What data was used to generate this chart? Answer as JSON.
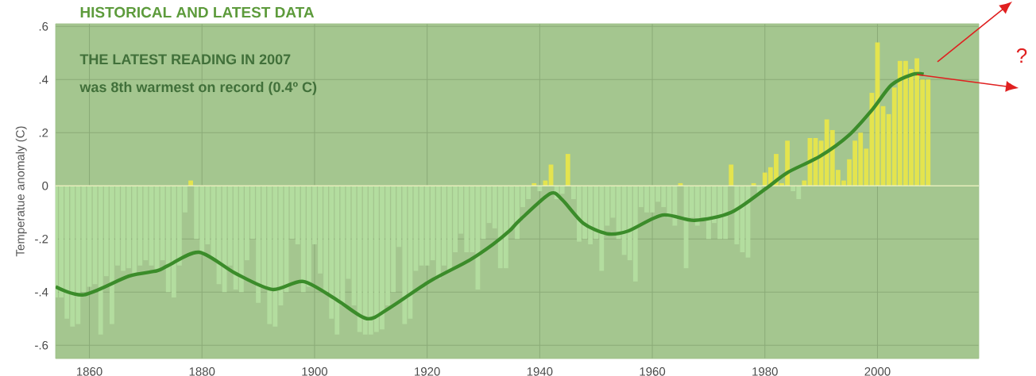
{
  "chart_data": {
    "type": "bar",
    "title": "HISTORICAL AND LATEST DATA",
    "ylabel": "Temperatue anomaly (C)",
    "annotations": [
      "THE LATEST READING IN 2007",
      "was 8th warmest on record (0.4º C)",
      "?"
    ],
    "xlim": [
      1854,
      2018
    ],
    "ylim": [
      -0.65,
      0.61
    ],
    "xticks": [
      1860,
      1880,
      1900,
      1920,
      1940,
      1960,
      1980,
      2000
    ],
    "yticks": [
      {
        "value": -0.6,
        "label": "-.6"
      },
      {
        "value": -0.4,
        "label": "-.4"
      },
      {
        "value": -0.2,
        "label": "-.2"
      },
      {
        "value": 0,
        "label": "0"
      },
      {
        "value": 0.2,
        "label": ".2"
      },
      {
        "value": 0.4,
        "label": ".4"
      },
      {
        "value": 0.6,
        "label": ".6"
      }
    ],
    "grid": true,
    "ref_lines": [
      {
        "axis": "y",
        "value": 0,
        "color": "#e8efbe"
      }
    ],
    "x": [
      1854,
      1855,
      1856,
      1857,
      1858,
      1859,
      1860,
      1861,
      1862,
      1863,
      1864,
      1865,
      1866,
      1867,
      1868,
      1869,
      1870,
      1871,
      1872,
      1873,
      1874,
      1875,
      1876,
      1877,
      1878,
      1879,
      1880,
      1881,
      1882,
      1883,
      1884,
      1885,
      1886,
      1887,
      1888,
      1889,
      1890,
      1891,
      1892,
      1893,
      1894,
      1895,
      1896,
      1897,
      1898,
      1899,
      1900,
      1901,
      1902,
      1903,
      1904,
      1905,
      1906,
      1907,
      1908,
      1909,
      1910,
      1911,
      1912,
      1913,
      1914,
      1915,
      1916,
      1917,
      1918,
      1919,
      1920,
      1921,
      1922,
      1923,
      1924,
      1925,
      1926,
      1927,
      1928,
      1929,
      1930,
      1931,
      1932,
      1933,
      1934,
      1935,
      1936,
      1937,
      1938,
      1939,
      1940,
      1941,
      1942,
      1943,
      1944,
      1945,
      1946,
      1947,
      1948,
      1949,
      1950,
      1951,
      1952,
      1953,
      1954,
      1955,
      1956,
      1957,
      1958,
      1959,
      1960,
      1961,
      1962,
      1963,
      1964,
      1965,
      1966,
      1967,
      1968,
      1969,
      1970,
      1971,
      1972,
      1973,
      1974,
      1975,
      1976,
      1977,
      1978,
      1979,
      1980,
      1981,
      1982,
      1983,
      1984,
      1985,
      1986,
      1987,
      1988,
      1989,
      1990,
      1991,
      1992,
      1993,
      1994,
      1995,
      1996,
      1997,
      1998,
      1999,
      2000,
      2001,
      2002,
      2003,
      2004,
      2005,
      2006,
      2007,
      2008,
      2009
    ],
    "series": [
      {
        "values": [
          -0.42,
          -0.42,
          -0.5,
          -0.53,
          -0.52,
          -0.4,
          -0.38,
          -0.37,
          -0.56,
          -0.34,
          -0.52,
          -0.3,
          -0.32,
          -0.31,
          -0.33,
          -0.3,
          -0.28,
          -0.3,
          -0.32,
          -0.28,
          -0.4,
          -0.42,
          -0.3,
          -0.1,
          0.02,
          -0.2,
          -0.25,
          -0.22,
          -0.28,
          -0.37,
          -0.4,
          -0.3,
          -0.39,
          -0.4,
          -0.28,
          -0.2,
          -0.44,
          -0.38,
          -0.52,
          -0.53,
          -0.45,
          -0.4,
          -0.2,
          -0.22,
          -0.4,
          -0.38,
          -0.22,
          -0.33,
          -0.4,
          -0.5,
          -0.56,
          -0.45,
          -0.35,
          -0.45,
          -0.55,
          -0.56,
          -0.56,
          -0.55,
          -0.54,
          -0.45,
          -0.4,
          -0.23,
          -0.52,
          -0.5,
          -0.32,
          -0.3,
          -0.3,
          -0.28,
          -0.35,
          -0.3,
          -0.32,
          -0.25,
          -0.18,
          -0.25,
          -0.25,
          -0.39,
          -0.2,
          -0.14,
          -0.16,
          -0.31,
          -0.31,
          -0.16,
          -0.2,
          -0.08,
          -0.05,
          0.01,
          -0.02,
          0.02,
          0.08,
          -0.05,
          -0.03,
          0.12,
          -0.05,
          -0.21,
          -0.2,
          -0.22,
          -0.2,
          -0.32,
          -0.15,
          -0.12,
          -0.2,
          -0.26,
          -0.28,
          -0.36,
          -0.08,
          -0.1,
          -0.1,
          -0.06,
          -0.08,
          -0.12,
          -0.15,
          0.01,
          -0.31,
          -0.12,
          -0.15,
          -0.12,
          -0.2,
          -0.14,
          -0.2,
          -0.2,
          0.08,
          -0.22,
          -0.25,
          -0.27,
          0.01,
          -0.03,
          0.05,
          0.07,
          0.12,
          0.01,
          0.17,
          -0.02,
          -0.05,
          0.02,
          0.18,
          0.18,
          0.17,
          0.25,
          0.21,
          0.06,
          0.02,
          0.1,
          0.17,
          0.2,
          0.14,
          0.35,
          0.54,
          0.3,
          0.27,
          0.37,
          0.47,
          0.47,
          0.44,
          0.48,
          0.4,
          0.4
        ],
        "colors": [
          "#b3dd9f",
          "#b3dd9f",
          "#b3dd9f",
          "#b3dd9f",
          "#b3dd9f",
          "#b3dd9f",
          "#b3dd9f",
          "#b3dd9f",
          "#b3dd9f",
          "#b3dd9f",
          "#b3dd9f",
          "#b3dd9f",
          "#b3dd9f",
          "#b3dd9f",
          "#b3dd9f",
          "#b3dd9f",
          "#b3dd9f",
          "#b3dd9f",
          "#b3dd9f",
          "#b3dd9f",
          "#b3dd9f",
          "#b3dd9f",
          "#b3dd9f",
          "#b3dd9f",
          "#e4e44e",
          "#b3dd9f",
          "#b3dd9f",
          "#b3dd9f",
          "#b3dd9f",
          "#b3dd9f",
          "#b3dd9f",
          "#b3dd9f",
          "#b3dd9f",
          "#b3dd9f",
          "#b3dd9f",
          "#b3dd9f",
          "#b3dd9f",
          "#b3dd9f",
          "#b3dd9f",
          "#b3dd9f",
          "#b3dd9f",
          "#b3dd9f",
          "#b3dd9f",
          "#b3dd9f",
          "#b3dd9f",
          "#b3dd9f",
          "#b3dd9f",
          "#b3dd9f",
          "#b3dd9f",
          "#b3dd9f",
          "#b3dd9f",
          "#b3dd9f",
          "#b3dd9f",
          "#b3dd9f",
          "#b3dd9f",
          "#b3dd9f",
          "#b3dd9f",
          "#b3dd9f",
          "#b3dd9f",
          "#b3dd9f",
          "#b3dd9f",
          "#b3dd9f",
          "#b3dd9f",
          "#b3dd9f",
          "#b3dd9f",
          "#b3dd9f",
          "#b3dd9f",
          "#b3dd9f",
          "#b3dd9f",
          "#b3dd9f",
          "#b3dd9f",
          "#b3dd9f",
          "#b3dd9f",
          "#b3dd9f",
          "#b3dd9f",
          "#b3dd9f",
          "#b3dd9f",
          "#b3dd9f",
          "#b3dd9f",
          "#b3dd9f",
          "#b3dd9f",
          "#b3dd9f",
          "#b3dd9f",
          "#b3dd9f",
          "#b3dd9f",
          "#e4e44e",
          "#b3dd9f",
          "#e4e44e",
          "#e4e44e",
          "#b3dd9f",
          "#b3dd9f",
          "#e4e44e",
          "#b3dd9f",
          "#b3dd9f",
          "#b3dd9f",
          "#b3dd9f",
          "#b3dd9f",
          "#b3dd9f",
          "#b3dd9f",
          "#b3dd9f",
          "#b3dd9f",
          "#b3dd9f",
          "#b3dd9f",
          "#b3dd9f",
          "#b3dd9f",
          "#b3dd9f",
          "#b3dd9f",
          "#b3dd9f",
          "#b3dd9f",
          "#b3dd9f",
          "#b3dd9f",
          "#e4e44e",
          "#b3dd9f",
          "#b3dd9f",
          "#b3dd9f",
          "#b3dd9f",
          "#b3dd9f",
          "#b3dd9f",
          "#b3dd9f",
          "#b3dd9f",
          "#e4e44e",
          "#b3dd9f",
          "#b3dd9f",
          "#b3dd9f",
          "#e4e44e",
          "#b3dd9f",
          "#e4e44e",
          "#e4e44e",
          "#e4e44e",
          "#e4e44e",
          "#e4e44e",
          "#b3dd9f",
          "#b3dd9f",
          "#e4e44e",
          "#e4e44e",
          "#e4e44e",
          "#e4e44e",
          "#e4e44e",
          "#e4e44e",
          "#e4e44e",
          "#e4e44e",
          "#e4e44e",
          "#e4e44e",
          "#e4e44e",
          "#e4e44e",
          "#e4e44e",
          "#e4e44e",
          "#e4e44e",
          "#e4e44e",
          "#e4e44e",
          "#e4e44e",
          "#e4e44e",
          "#e4e44e",
          "#e4e44e",
          "#e4e44e",
          "#e4e44e"
        ]
      },
      {
        "type": "line",
        "color": "#3b8c2a",
        "x": [
          1854,
          1859,
          1867,
          1872,
          1874,
          1879.5,
          1886,
          1892.5,
          1898,
          1904,
          1909.3,
          1913.3,
          1920.4,
          1927.5,
          1931.7,
          1934.6,
          1936.4,
          1941.8,
          1943.9,
          1947.7,
          1951.9,
          1955.7,
          1961.8,
          1967.5,
          1974,
          1980.2,
          1984,
          1989.7,
          1994.9,
          1999.2,
          2002.5,
          2006.3,
          2008.2
        ],
        "values": [
          -0.38,
          -0.41,
          -0.34,
          -0.32,
          -0.3,
          -0.25,
          -0.33,
          -0.39,
          -0.36,
          -0.43,
          -0.5,
          -0.46,
          -0.36,
          -0.28,
          -0.22,
          -0.17,
          -0.13,
          -0.03,
          -0.05,
          -0.14,
          -0.18,
          -0.17,
          -0.11,
          -0.13,
          -0.1,
          -0.01,
          0.05,
          0.11,
          0.19,
          0.29,
          0.38,
          0.42,
          0.42
        ]
      }
    ]
  }
}
